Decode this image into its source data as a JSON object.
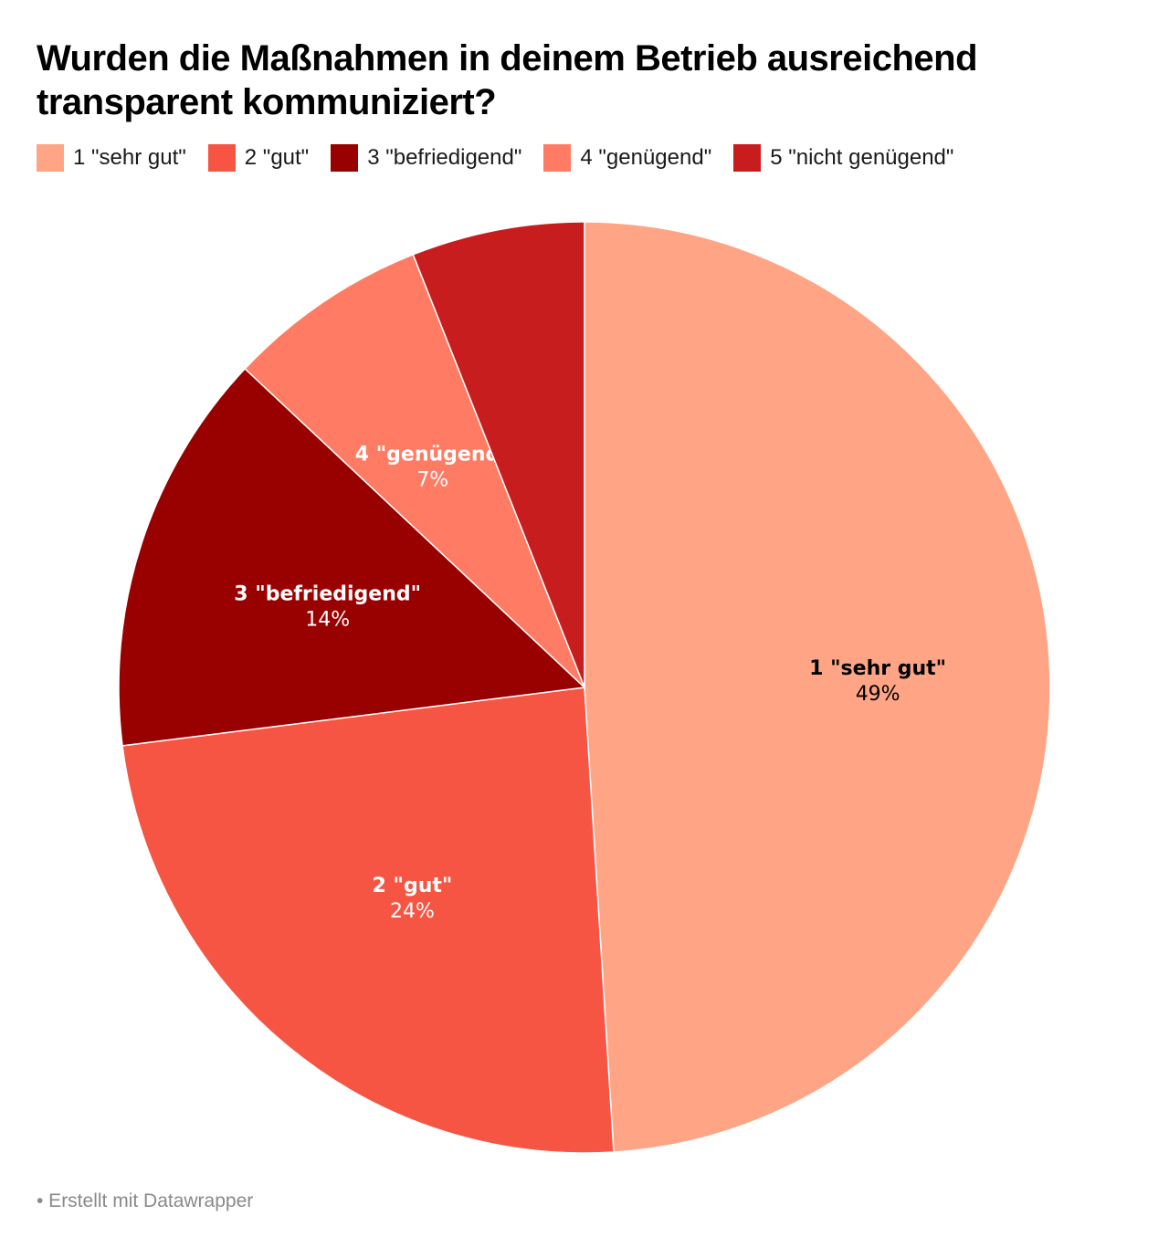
{
  "title": "Wurden die Maßnahmen in deinem Betrieb ausreichend transparent kommuniziert?",
  "source": "• Erstellt mit Datawrapper",
  "chart_data": {
    "type": "pie",
    "slices": [
      {
        "label": "1 \"sehr gut\"",
        "value": 49,
        "value_label": "49%",
        "color": "#ffa586",
        "label_color": "#000000"
      },
      {
        "label": "2 \"gut\"",
        "value": 24,
        "value_label": "24%",
        "color": "#f75543",
        "label_color": "#ffffff"
      },
      {
        "label": "3 \"befriedigend\"",
        "value": 14,
        "value_label": "14%",
        "color": "#990000",
        "label_color": "#ffffff"
      },
      {
        "label": "4 \"genügend\"",
        "value": 7,
        "value_label": "7%",
        "color": "#ff7b63",
        "label_color": "#ffffff"
      },
      {
        "label": "5 \"nicht genügend\"",
        "value": 6,
        "value_label": "",
        "color": "#c81d1f",
        "label_color": "#ffffff"
      }
    ],
    "legend_position": "top"
  }
}
